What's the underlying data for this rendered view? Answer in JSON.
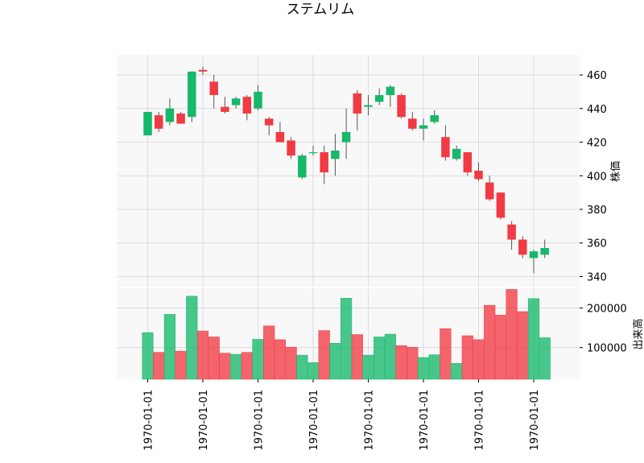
{
  "chart_data": {
    "type": "candlestick",
    "title": "ステムリム",
    "price_ylabel": "株価",
    "volume_ylabel": "出来高",
    "price_ylim": [
      334,
      472
    ],
    "volume_ylim": [
      20000,
      250000
    ],
    "price_ticks": [
      "340",
      "360",
      "380",
      "400",
      "420",
      "440",
      "460"
    ],
    "volume_ticks": [
      "100000",
      "200000"
    ],
    "x_tick_labels": [
      "1970-01-01",
      "1970-01-01",
      "1970-01-01",
      "1970-01-01",
      "1970-01-01",
      "1970-01-01",
      "1970-01-01",
      "1970-01-01"
    ],
    "grid": true,
    "colors": {
      "up": "#16b86c",
      "down": "#f23a44",
      "background": "#f8f8f8",
      "grid": "#d6d6d6",
      "wick": "#555555"
    },
    "candles": [
      {
        "open": 424,
        "high": 438,
        "low": 424,
        "close": 438,
        "volume": 138000
      },
      {
        "open": 436,
        "high": 438,
        "low": 426,
        "close": 428,
        "volume": 88000
      },
      {
        "open": 432,
        "high": 446,
        "low": 430,
        "close": 440,
        "volume": 184000
      },
      {
        "open": 437,
        "high": 438,
        "low": 431,
        "close": 431,
        "volume": 91000
      },
      {
        "open": 435,
        "high": 462,
        "low": 432,
        "close": 462,
        "volume": 230000
      },
      {
        "open": 463,
        "high": 465,
        "low": 460,
        "close": 462,
        "volume": 142000
      },
      {
        "open": 456,
        "high": 460,
        "low": 440,
        "close": 448,
        "volume": 127000
      },
      {
        "open": 441,
        "high": 447,
        "low": 437,
        "close": 438,
        "volume": 86000
      },
      {
        "open": 442,
        "high": 447,
        "low": 440,
        "close": 446,
        "volume": 83000
      },
      {
        "open": 447,
        "high": 448,
        "low": 433,
        "close": 437,
        "volume": 88000
      },
      {
        "open": 440,
        "high": 454,
        "low": 439,
        "close": 450,
        "volume": 121000
      },
      {
        "open": 434,
        "high": 435,
        "low": 424,
        "close": 430,
        "volume": 155000
      },
      {
        "open": 426,
        "high": 432,
        "low": 420,
        "close": 420,
        "volume": 120000
      },
      {
        "open": 421,
        "high": 423,
        "low": 410,
        "close": 412,
        "volume": 101000
      },
      {
        "open": 399,
        "high": 413,
        "low": 398,
        "close": 412,
        "volume": 81000
      },
      {
        "open": 414,
        "high": 418,
        "low": 412,
        "close": 414,
        "volume": 62000
      },
      {
        "open": 414,
        "high": 418,
        "low": 395,
        "close": 402,
        "volume": 143000
      },
      {
        "open": 410,
        "high": 425,
        "low": 400,
        "close": 415,
        "volume": 111000
      },
      {
        "open": 420,
        "high": 440,
        "low": 410,
        "close": 426,
        "volume": 225000
      },
      {
        "open": 449,
        "high": 451,
        "low": 427,
        "close": 437,
        "volume": 133000
      },
      {
        "open": 441,
        "high": 448,
        "low": 436,
        "close": 442,
        "volume": 81000
      },
      {
        "open": 444,
        "high": 452,
        "low": 442,
        "close": 448,
        "volume": 127000
      },
      {
        "open": 448,
        "high": 454,
        "low": 441,
        "close": 453,
        "volume": 134000
      },
      {
        "open": 448,
        "high": 449,
        "low": 434,
        "close": 435,
        "volume": 105000
      },
      {
        "open": 434,
        "high": 438,
        "low": 427,
        "close": 428,
        "volume": 101000
      },
      {
        "open": 428,
        "high": 434,
        "low": 421,
        "close": 430,
        "volume": 75000
      },
      {
        "open": 432,
        "high": 439,
        "low": 431,
        "close": 436,
        "volume": 82000
      },
      {
        "open": 423,
        "high": 430,
        "low": 409,
        "close": 411,
        "volume": 148000
      },
      {
        "open": 410,
        "high": 418,
        "low": 409,
        "close": 416,
        "volume": 60000
      },
      {
        "open": 414,
        "high": 414,
        "low": 400,
        "close": 402,
        "volume": 130000
      },
      {
        "open": 403,
        "high": 408,
        "low": 397,
        "close": 398,
        "volume": 120000
      },
      {
        "open": 396,
        "high": 400,
        "low": 385,
        "close": 386,
        "volume": 207000
      },
      {
        "open": 390,
        "high": 390,
        "low": 374,
        "close": 375,
        "volume": 182000
      },
      {
        "open": 371,
        "high": 373,
        "low": 356,
        "close": 362,
        "volume": 247000
      },
      {
        "open": 362,
        "high": 364,
        "low": 351,
        "close": 353,
        "volume": 191000
      },
      {
        "open": 351,
        "high": 356,
        "low": 342,
        "close": 355,
        "volume": 224000
      },
      {
        "open": 353,
        "high": 362,
        "low": 351,
        "close": 357,
        "volume": 125000
      }
    ]
  }
}
